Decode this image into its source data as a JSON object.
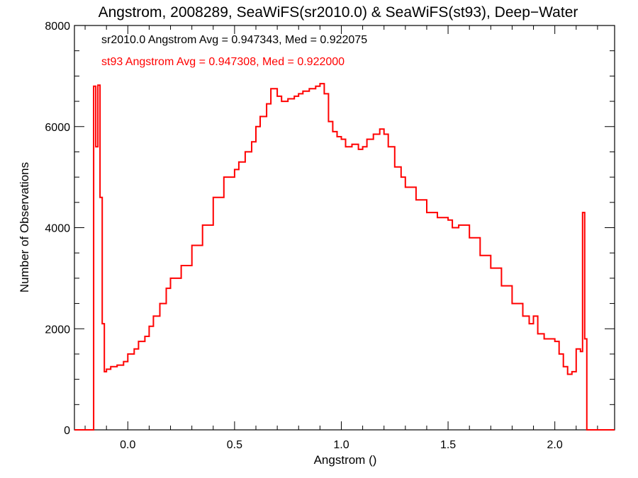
{
  "chart_data": {
    "type": "line",
    "title": "Angstrom, 2008289, SeaWiFS(sr2010.0) & SeaWiFS(st93), Deep−Water",
    "xlabel": "Angstrom ()",
    "ylabel": "Number of Observations",
    "xlim": [
      -0.25,
      2.28
    ],
    "ylim": [
      0,
      8000
    ],
    "xticks": [
      0.0,
      0.5,
      1.0,
      1.5,
      2.0
    ],
    "xtick_labels": [
      "0.0",
      "0.5",
      "1.0",
      "1.5",
      "2.0"
    ],
    "yticks": [
      0,
      2000,
      4000,
      6000,
      8000
    ],
    "ytick_labels": [
      "0",
      "2000",
      "4000",
      "6000",
      "8000"
    ],
    "grid": false,
    "step": true,
    "annotations": [
      {
        "text": "sr2010.0 Angstrom Avg = 0.947343, Med = 0.922075",
        "color": "#000000"
      },
      {
        "text": "st93 Angstrom Avg = 0.947308, Med = 0.922000",
        "color": "#ff0000"
      }
    ],
    "series": [
      {
        "color": "#ff0000",
        "x": [
          -0.25,
          -0.16,
          -0.15,
          -0.14,
          -0.13,
          -0.12,
          -0.11,
          -0.1,
          -0.08,
          -0.05,
          -0.02,
          0.0,
          0.03,
          0.05,
          0.08,
          0.1,
          0.12,
          0.15,
          0.18,
          0.2,
          0.25,
          0.3,
          0.35,
          0.4,
          0.45,
          0.5,
          0.52,
          0.55,
          0.58,
          0.6,
          0.62,
          0.65,
          0.67,
          0.7,
          0.72,
          0.75,
          0.78,
          0.8,
          0.82,
          0.85,
          0.88,
          0.9,
          0.92,
          0.94,
          0.96,
          0.98,
          1.0,
          1.02,
          1.05,
          1.08,
          1.1,
          1.12,
          1.15,
          1.18,
          1.2,
          1.22,
          1.25,
          1.28,
          1.3,
          1.35,
          1.4,
          1.45,
          1.5,
          1.52,
          1.55,
          1.6,
          1.65,
          1.7,
          1.75,
          1.8,
          1.85,
          1.88,
          1.9,
          1.92,
          1.95,
          2.0,
          2.02,
          2.04,
          2.06,
          2.08,
          2.1,
          2.12,
          2.13,
          2.14,
          2.15,
          2.28
        ],
        "y": [
          0,
          6800,
          5600,
          6820,
          4600,
          2100,
          1150,
          1200,
          1250,
          1280,
          1350,
          1500,
          1600,
          1750,
          1850,
          2050,
          2250,
          2500,
          2800,
          3000,
          3250,
          3650,
          4050,
          4600,
          5000,
          5150,
          5300,
          5500,
          5700,
          6000,
          6200,
          6450,
          6750,
          6600,
          6500,
          6550,
          6600,
          6650,
          6700,
          6750,
          6800,
          6850,
          6650,
          6100,
          5900,
          5800,
          5750,
          5600,
          5650,
          5550,
          5600,
          5750,
          5850,
          5950,
          5850,
          5600,
          5200,
          5000,
          4800,
          4550,
          4300,
          4200,
          4150,
          4000,
          4050,
          3800,
          3450,
          3200,
          2850,
          2500,
          2250,
          2100,
          2250,
          1900,
          1800,
          1750,
          1500,
          1250,
          1100,
          1150,
          1600,
          1550,
          4300,
          1800,
          0,
          0
        ]
      }
    ]
  }
}
